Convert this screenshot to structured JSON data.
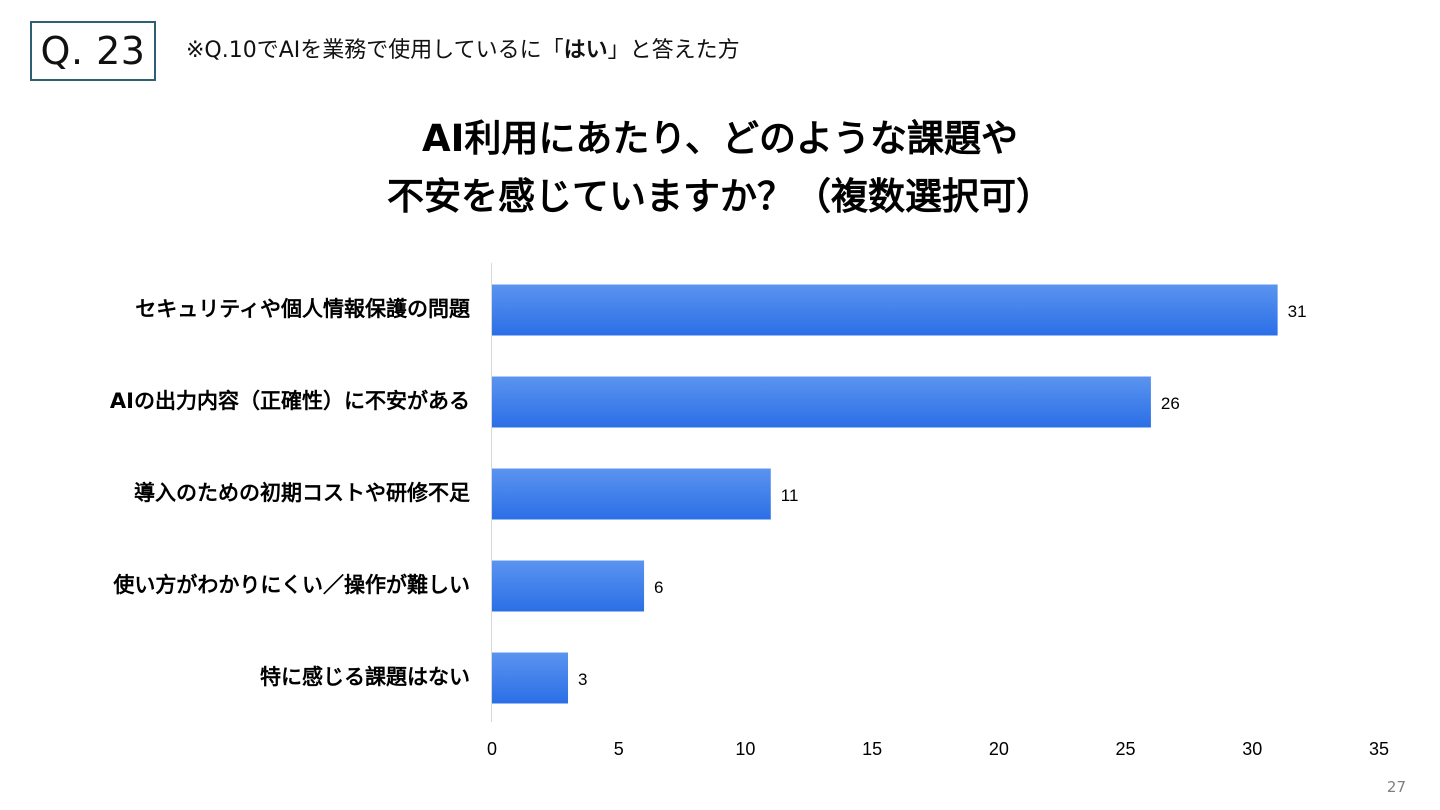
{
  "header": {
    "question_no": "Q. 23",
    "note_prefix": "※Q.10でAIを業務で使用しているに「",
    "note_bold": "はい",
    "note_suffix": "」と答えた方"
  },
  "chart_data": {
    "type": "bar",
    "orientation": "horizontal",
    "title_lines": [
      "AI利用にあたり、どのような課題や",
      "不安を感じていますか？（複数選択可）"
    ],
    "categories": [
      "セキュリティや個人情報保護の問題",
      "AIの出力内容（正確性）に不安がある",
      "導入のための初期コストや研修不足",
      "使い方がわかりにくい／操作が難しい",
      "特に感じる課題はない"
    ],
    "values": [
      31,
      26,
      11,
      6,
      3
    ],
    "xlim": [
      0,
      35
    ],
    "xticks": [
      0,
      5,
      10,
      15,
      20,
      25,
      30,
      35
    ],
    "data_labels": true,
    "grid": false,
    "bar_color_top": "#5b94f0",
    "bar_color_bottom": "#2b6fe6"
  },
  "footer": {
    "page_number": "27"
  }
}
